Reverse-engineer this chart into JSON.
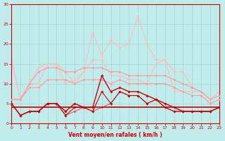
{
  "x": [
    0,
    1,
    2,
    3,
    4,
    5,
    6,
    7,
    8,
    9,
    10,
    11,
    12,
    13,
    14,
    15,
    16,
    17,
    18,
    19,
    20,
    21,
    22,
    23
  ],
  "line_vlight1": [
    16,
    6,
    10,
    14,
    15,
    15,
    10,
    11,
    13,
    23,
    17,
    21,
    19,
    20,
    27,
    20,
    16,
    16,
    13,
    13,
    9,
    8,
    6,
    8
  ],
  "line_vlight2": [
    16,
    6,
    10,
    10,
    15,
    15,
    13,
    10,
    13,
    16,
    16,
    12,
    12,
    11,
    11,
    10,
    15,
    16,
    8,
    8,
    8,
    8,
    6,
    8
  ],
  "line_light1": [
    6,
    6,
    10,
    13,
    14,
    14,
    13,
    13,
    14,
    14,
    14,
    13,
    13,
    12,
    12,
    12,
    12,
    12,
    11,
    10,
    9,
    8,
    6,
    7
  ],
  "line_light2": [
    6,
    6,
    9,
    9,
    11,
    11,
    11,
    10,
    11,
    11,
    11,
    10,
    11,
    10,
    10,
    10,
    10,
    10,
    9,
    8,
    7,
    7,
    5,
    6
  ],
  "line_dark1": [
    5,
    2,
    3,
    3,
    5,
    5,
    3,
    5,
    4,
    4,
    12,
    8,
    9,
    8,
    8,
    7,
    6,
    5,
    4,
    3,
    3,
    3,
    3,
    4
  ],
  "line_dark2": [
    5,
    2,
    3,
    3,
    5,
    5,
    2,
    4,
    4,
    3,
    8,
    5,
    8,
    7,
    7,
    5,
    6,
    4,
    3,
    3,
    3,
    3,
    3,
    4
  ],
  "line_dark3": [
    5,
    2,
    3,
    3,
    5,
    5,
    2,
    3,
    4,
    3,
    4,
    5,
    8,
    7,
    7,
    5,
    6,
    4,
    3,
    3,
    3,
    3,
    3,
    4
  ],
  "background_color": "#c0ecec",
  "grid_color": "#a8d8d8",
  "line_color_dark": "#cc0000",
  "line_color_mid": "#ee4444",
  "line_color_light": "#ff9999",
  "line_color_vlight": "#ffbbbb",
  "xlabel": "Vent moyen/en rafales ( km/h )",
  "ylim": [
    0,
    30
  ],
  "xlim": [
    0,
    23
  ],
  "yticks": [
    0,
    5,
    10,
    15,
    20,
    25,
    30
  ],
  "xticks": [
    0,
    1,
    2,
    3,
    4,
    5,
    6,
    7,
    8,
    9,
    10,
    11,
    12,
    13,
    14,
    15,
    16,
    17,
    18,
    19,
    20,
    21,
    22,
    23
  ]
}
